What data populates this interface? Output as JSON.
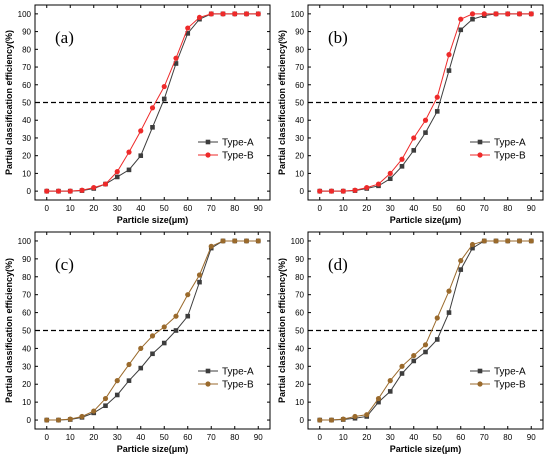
{
  "chart_data": [
    {
      "type": "line",
      "panel_label": "(a)",
      "xlabel": "Particle size(μm)",
      "ylabel": "Partial classification efficiency(%)",
      "xlim": [
        -5,
        95
      ],
      "ylim": [
        -5,
        105
      ],
      "xticks": [
        "0",
        "10",
        "20",
        "30",
        "40",
        "50",
        "60",
        "70",
        "80",
        "90"
      ],
      "yticks": [
        "0",
        "10",
        "20",
        "30",
        "40",
        "50",
        "60",
        "70",
        "80",
        "90",
        "100"
      ],
      "reference_line": 50,
      "legend_position": "center-right",
      "x": [
        0,
        5,
        10,
        15,
        20,
        25,
        30,
        35,
        40,
        45,
        50,
        55,
        60,
        65,
        70,
        75,
        80,
        85,
        90
      ],
      "series": [
        {
          "name": "Type-A",
          "color": "#3d3d3d",
          "marker": "square",
          "values": [
            0,
            0,
            0,
            0.3,
            1.5,
            4,
            8,
            12,
            20,
            36,
            52,
            72,
            89,
            97,
            100,
            100,
            100,
            100,
            100
          ]
        },
        {
          "name": "Type-B",
          "color": "#ee2a2a",
          "marker": "circle",
          "values": [
            0,
            0,
            0,
            0.5,
            2,
            4,
            11,
            22,
            34,
            47,
            59,
            75,
            92,
            98,
            100,
            100,
            100,
            100,
            100
          ]
        }
      ]
    },
    {
      "type": "line",
      "panel_label": "(b)",
      "xlabel": "Particle size(μm)",
      "ylabel": "Partial classification efficiency(%)",
      "xlim": [
        -5,
        95
      ],
      "ylim": [
        -5,
        105
      ],
      "xticks": [
        "0",
        "10",
        "20",
        "30",
        "40",
        "50",
        "60",
        "70",
        "80",
        "90"
      ],
      "yticks": [
        "0",
        "10",
        "20",
        "30",
        "40",
        "50",
        "60",
        "70",
        "80",
        "90",
        "100"
      ],
      "reference_line": 50,
      "legend_position": "center-right",
      "x": [
        0,
        5,
        10,
        15,
        20,
        25,
        30,
        35,
        40,
        45,
        50,
        55,
        60,
        65,
        70,
        75,
        80,
        85,
        90
      ],
      "series": [
        {
          "name": "Type-A",
          "color": "#3d3d3d",
          "marker": "square",
          "values": [
            0,
            0,
            0,
            0.3,
            1.5,
            3,
            7,
            14,
            23,
            33,
            45,
            68,
            91,
            97,
            99,
            100,
            100,
            100,
            100
          ]
        },
        {
          "name": "Type-B",
          "color": "#ee2a2a",
          "marker": "circle",
          "values": [
            0,
            0,
            0,
            0.5,
            2,
            4,
            10,
            18,
            30,
            40,
            53,
            77,
            97,
            100,
            100,
            100,
            100,
            100,
            100
          ]
        }
      ]
    },
    {
      "type": "line",
      "panel_label": "(c)",
      "xlabel": "Particle size(μm)",
      "ylabel": "Partial classification efficiency(%)",
      "xlim": [
        -5,
        95
      ],
      "ylim": [
        -5,
        105
      ],
      "xticks": [
        "0",
        "10",
        "20",
        "30",
        "40",
        "50",
        "60",
        "70",
        "80",
        "90"
      ],
      "yticks": [
        "0",
        "10",
        "20",
        "30",
        "40",
        "50",
        "60",
        "70",
        "80",
        "90",
        "100"
      ],
      "reference_line": 50,
      "legend_position": "center-right",
      "x": [
        0,
        5,
        10,
        15,
        20,
        25,
        30,
        35,
        40,
        45,
        50,
        55,
        60,
        65,
        70,
        75,
        80,
        85,
        90
      ],
      "series": [
        {
          "name": "Type-A",
          "color": "#3d3d3d",
          "marker": "square",
          "values": [
            0,
            0,
            0.3,
            1.5,
            4,
            8,
            14,
            22,
            29,
            37,
            43,
            50,
            58,
            77,
            96,
            100,
            100,
            100,
            100
          ]
        },
        {
          "name": "Type-B",
          "color": "#9a6a2c",
          "marker": "circle",
          "values": [
            0,
            0,
            0.5,
            2,
            5,
            12,
            22,
            31,
            40,
            47,
            52,
            58,
            70,
            81,
            97,
            100,
            100,
            100,
            100
          ]
        }
      ]
    },
    {
      "type": "line",
      "panel_label": "(d)",
      "xlabel": "Particle size(μm)",
      "ylabel": "Partial classification efficiency(%)",
      "xlim": [
        -5,
        95
      ],
      "ylim": [
        -5,
        105
      ],
      "xticks": [
        "0",
        "10",
        "20",
        "30",
        "40",
        "50",
        "60",
        "70",
        "80",
        "90"
      ],
      "yticks": [
        "0",
        "10",
        "20",
        "30",
        "40",
        "50",
        "60",
        "70",
        "80",
        "90",
        "100"
      ],
      "reference_line": 50,
      "legend_position": "center-right",
      "x": [
        0,
        5,
        10,
        15,
        20,
        25,
        30,
        35,
        40,
        45,
        50,
        55,
        60,
        65,
        70,
        75,
        80,
        85,
        90
      ],
      "series": [
        {
          "name": "Type-A",
          "color": "#3d3d3d",
          "marker": "square",
          "values": [
            0,
            0,
            0.3,
            1,
            2,
            10,
            16,
            26,
            33,
            38,
            45,
            60,
            84,
            96,
            100,
            100,
            100,
            100,
            100
          ]
        },
        {
          "name": "Type-B",
          "color": "#9a6a2c",
          "marker": "circle",
          "values": [
            0,
            0,
            0.5,
            2,
            3,
            12,
            22,
            30,
            36,
            42,
            57,
            72,
            89,
            98,
            100,
            100,
            100,
            100,
            100
          ]
        }
      ]
    }
  ]
}
